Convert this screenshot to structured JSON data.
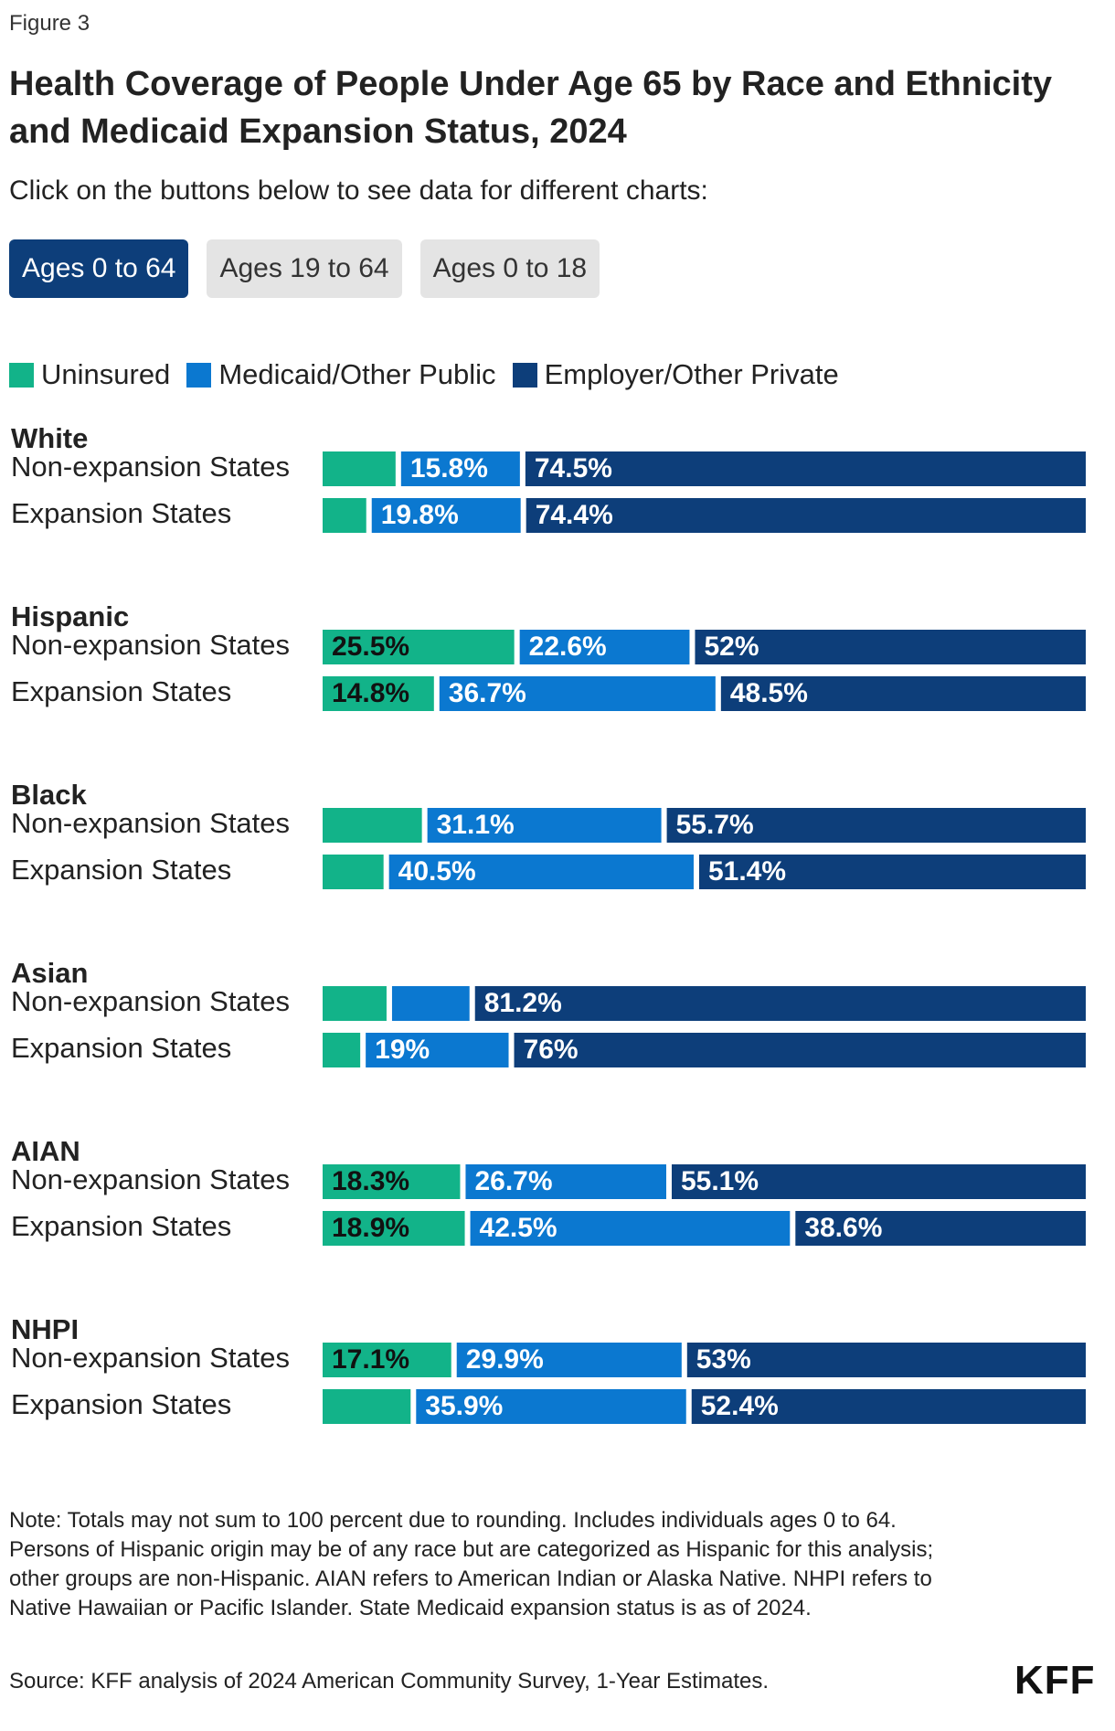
{
  "figure_label": "Figure 3",
  "title": "Health Coverage of People Under Age 65 by Race and Ethnicity and Medicaid Expansion Status, 2024",
  "subtitle": "Click on the buttons below to see data for different charts:",
  "buttons": [
    {
      "label": "Ages 0 to 64",
      "active": true
    },
    {
      "label": "Ages 19 to 64",
      "active": false
    },
    {
      "label": "Ages 0 to 18",
      "active": false
    }
  ],
  "colors": {
    "uninsured": "#12b389",
    "medicaid": "#0b78d0",
    "employer": "#0d3e7a",
    "active_button": "#0d3e7a"
  },
  "chart_data": {
    "type": "bar",
    "orientation": "horizontal",
    "stacked": true,
    "legend": [
      "Uninsured",
      "Medicaid/Other Public",
      "Employer/Other Private"
    ],
    "legend_position": "top-left",
    "xlim": [
      0,
      100
    ],
    "groups": [
      {
        "name": "White",
        "rows": [
          {
            "label": "Non-expansion States",
            "values": [
              9.7,
              15.8,
              74.5
            ],
            "labels": [
              "",
              "15.8%",
              "74.5%"
            ]
          },
          {
            "label": "Expansion States",
            "values": [
              5.8,
              19.8,
              74.4
            ],
            "labels": [
              "",
              "19.8%",
              "74.4%"
            ]
          }
        ]
      },
      {
        "name": "Hispanic",
        "rows": [
          {
            "label": "Non-expansion States",
            "values": [
              25.5,
              22.6,
              52
            ],
            "labels": [
              "25.5%",
              "22.6%",
              "52%"
            ]
          },
          {
            "label": "Expansion States",
            "values": [
              14.8,
              36.7,
              48.5
            ],
            "labels": [
              "14.8%",
              "36.7%",
              "48.5%"
            ]
          }
        ]
      },
      {
        "name": "Black",
        "rows": [
          {
            "label": "Non-expansion States",
            "values": [
              13.2,
              31.1,
              55.7
            ],
            "labels": [
              "",
              "31.1%",
              "55.7%"
            ]
          },
          {
            "label": "Expansion States",
            "values": [
              8.1,
              40.5,
              51.4
            ],
            "labels": [
              "",
              "40.5%",
              "51.4%"
            ]
          }
        ]
      },
      {
        "name": "Asian",
        "rows": [
          {
            "label": "Non-expansion States",
            "values": [
              8.5,
              10.3,
              81.2
            ],
            "labels": [
              "",
              "",
              "81.2%"
            ]
          },
          {
            "label": "Expansion States",
            "values": [
              5,
              19,
              76
            ],
            "labels": [
              "",
              "19%",
              "76%"
            ]
          }
        ]
      },
      {
        "name": "AIAN",
        "rows": [
          {
            "label": "Non-expansion States",
            "values": [
              18.3,
              26.7,
              55.1
            ],
            "labels": [
              "18.3%",
              "26.7%",
              "55.1%"
            ]
          },
          {
            "label": "Expansion States",
            "values": [
              18.9,
              42.5,
              38.6
            ],
            "labels": [
              "18.9%",
              "42.5%",
              "38.6%"
            ]
          }
        ]
      },
      {
        "name": "NHPI",
        "rows": [
          {
            "label": "Non-expansion States",
            "values": [
              17.1,
              29.9,
              53
            ],
            "labels": [
              "17.1%",
              "29.9%",
              "53%"
            ]
          },
          {
            "label": "Expansion States",
            "values": [
              11.7,
              35.9,
              52.4
            ],
            "labels": [
              "",
              "35.9%",
              "52.4%"
            ]
          }
        ]
      }
    ]
  },
  "note": "Note: Totals may not sum to 100 percent due to rounding. Includes individuals ages 0 to 64. Persons of Hispanic origin may be of any race but are categorized as Hispanic for this analysis; other groups are non-Hispanic. AIAN refers to American Indian or Alaska Native. NHPI refers to Native Hawaiian or Pacific Islander. State Medicaid expansion status is as of 2024.",
  "source": "Source: KFF analysis of 2024 American Community Survey, 1-Year Estimates.",
  "logo_text": "KFF"
}
